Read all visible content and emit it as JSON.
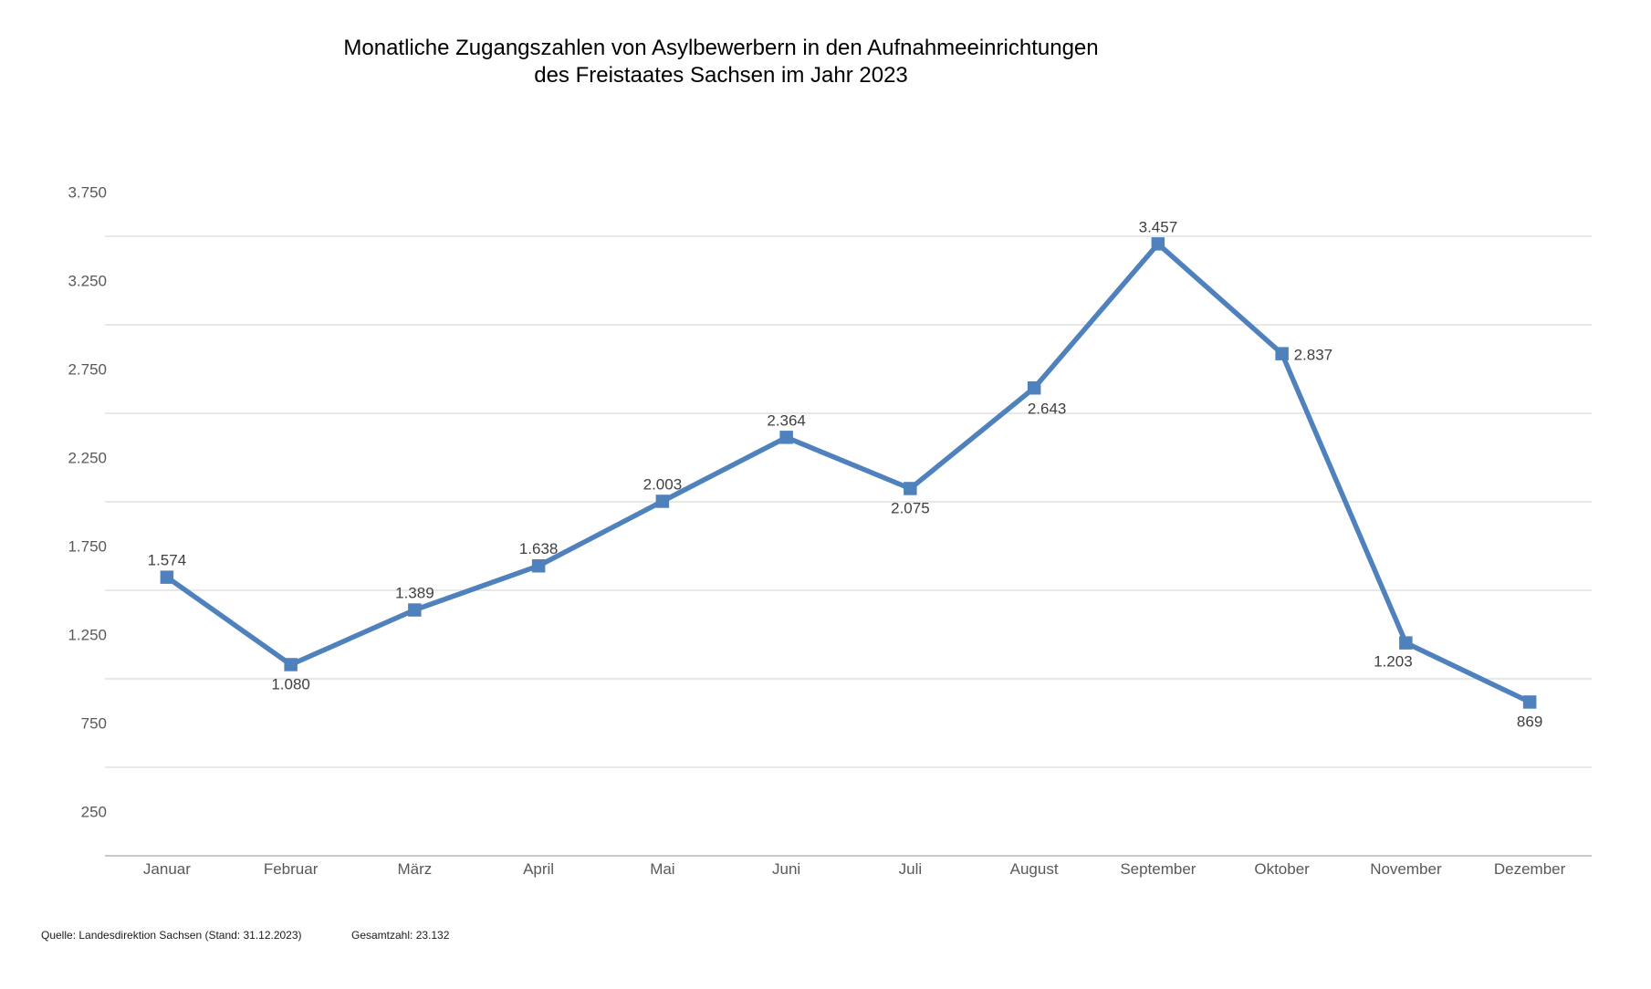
{
  "title": {
    "line1": "Monatliche Zugangszahlen von Asylbewerbern in den Aufnahmeeinrichtungen",
    "line2": "des Freistaates Sachsen im Jahr 2023"
  },
  "footer": {
    "source": "Quelle: Landesdirektion Sachsen (Stand: 31.12.2023)",
    "total": "Gesamtzahl: 23.132"
  },
  "chart_data": {
    "type": "line",
    "title": "Monatliche Zugangszahlen von Asylbewerbern in den Aufnahmeeinrichtungen des Freistaates Sachsen im Jahr 2023",
    "categories": [
      "Januar",
      "Februar",
      "März",
      "April",
      "Mai",
      "Juni",
      "Juli",
      "August",
      "September",
      "Oktober",
      "November",
      "Dezember"
    ],
    "values": [
      1574,
      1080,
      1389,
      1638,
      2003,
      2364,
      2075,
      2643,
      3457,
      2837,
      1203,
      869
    ],
    "data_labels": [
      "1.574",
      "1.080",
      "1.389",
      "1.638",
      "2.003",
      "2.364",
      "2.075",
      "2.643",
      "3.457",
      "2.837",
      "1.203",
      "869"
    ],
    "label_placements": [
      "above",
      "below",
      "above",
      "above",
      "above",
      "above",
      "below",
      "below-right",
      "above",
      "right",
      "below-left",
      "below"
    ],
    "xlabel": "",
    "ylabel": "",
    "y_axis": {
      "tick_labels": [
        "3.750",
        "3.250",
        "2.750",
        "2.250",
        "1.750",
        "1.250",
        "750",
        "250"
      ],
      "tick_values": [
        3750,
        3250,
        2750,
        2250,
        1750,
        1250,
        750,
        250
      ],
      "gridline_values": [
        3500,
        3000,
        2500,
        2000,
        1500,
        1000,
        500
      ],
      "ylim": [
        0,
        3750
      ]
    },
    "grid": true,
    "legend": "none",
    "colors": {
      "series": "#4f81bd",
      "marker": "#4f81bd",
      "gridline": "#d9d9d9",
      "axis_line": "#c0c0c0",
      "axis_text": "#595959",
      "data_label_text": "#404040",
      "title_text": "#000000",
      "footer_text": "#1a1a1a"
    }
  }
}
